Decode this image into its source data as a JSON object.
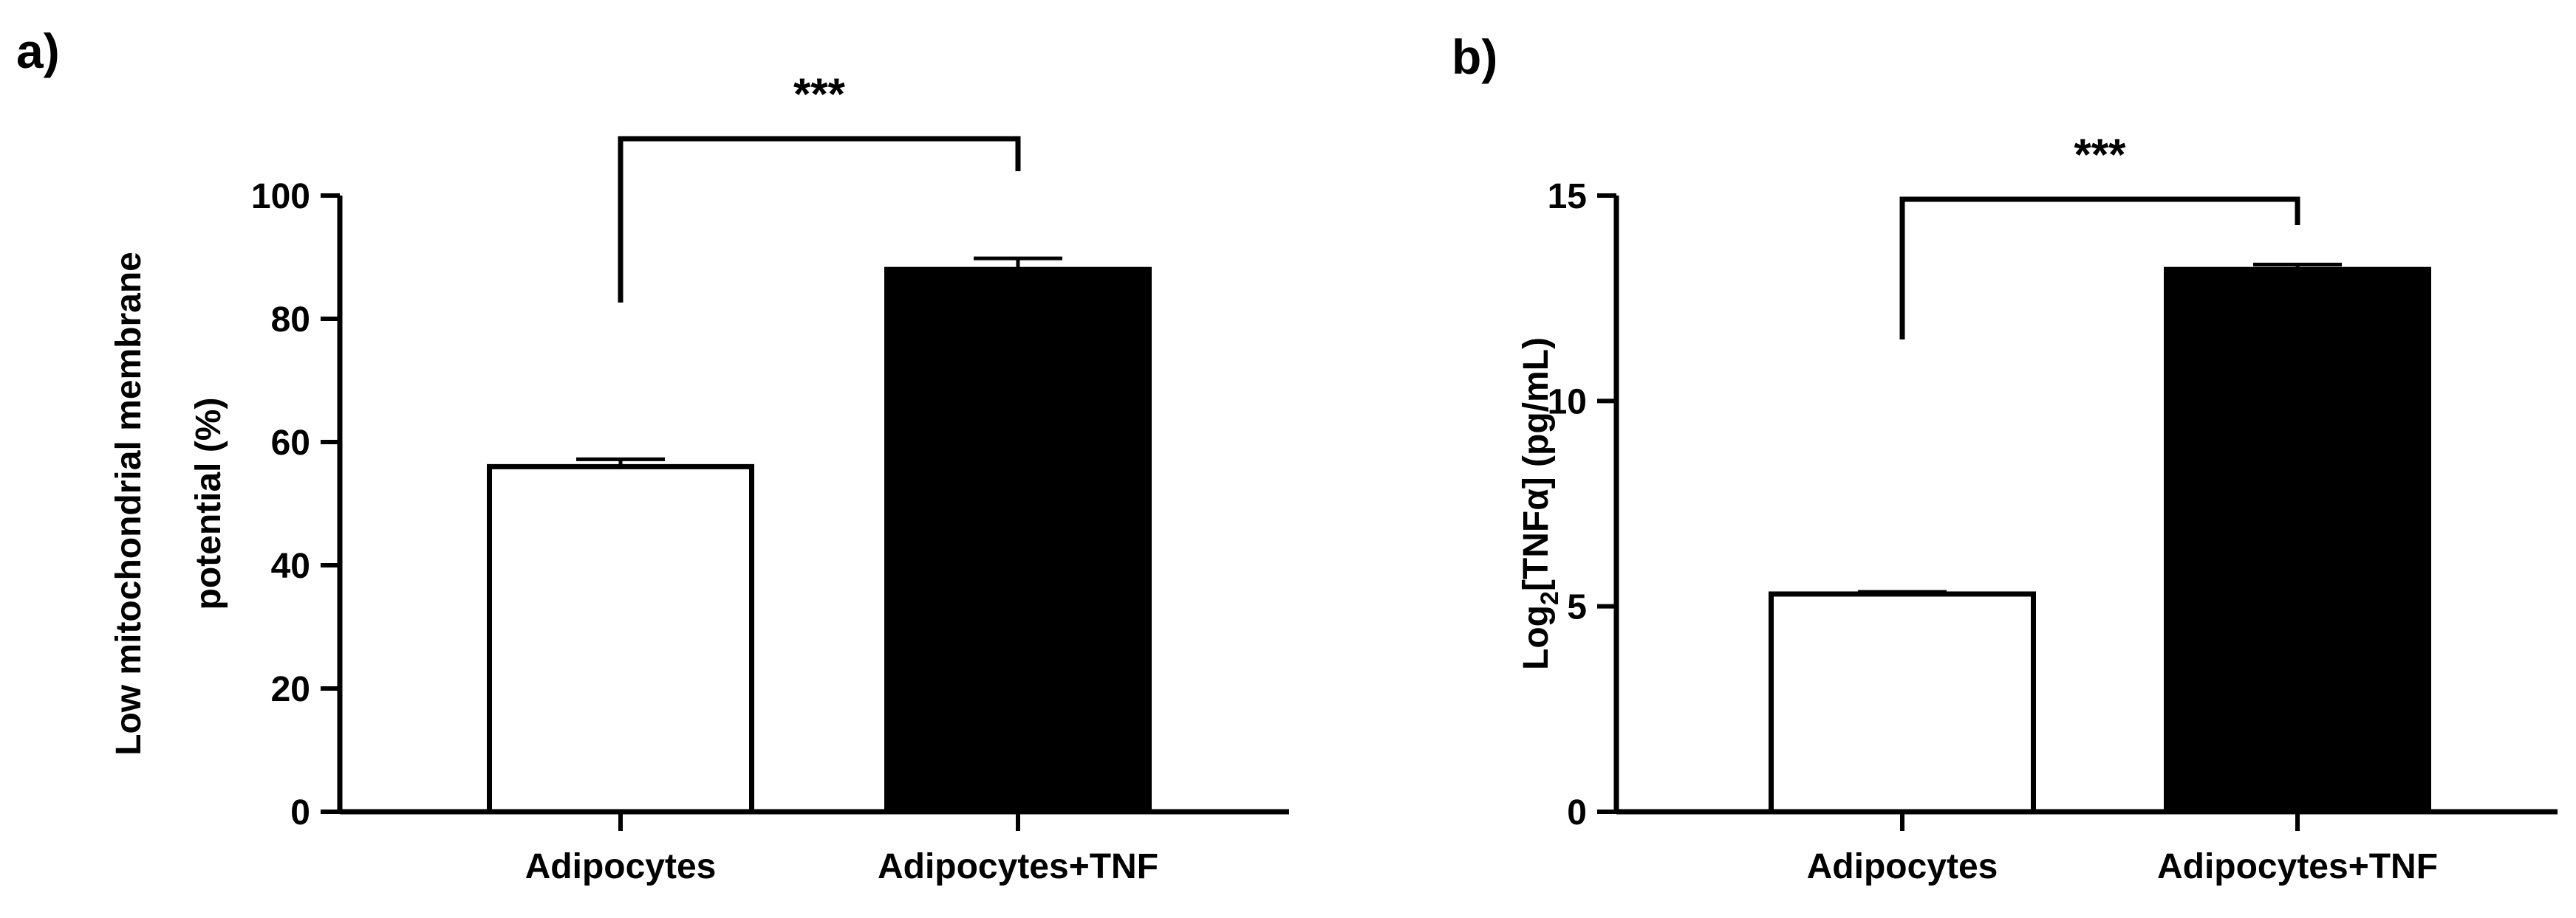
{
  "chart_data": [
    {
      "type": "bar",
      "panel_label": "a)",
      "categories": [
        "Adipocytes",
        "Adipocytes+TNF"
      ],
      "values": [
        56,
        88
      ],
      "errors": [
        1.2,
        1.8
      ],
      "bar_colors": [
        "#ffffff",
        "#000000"
      ],
      "ylabel_lines": [
        "Low mitochondrial membrane",
        "potential (%)"
      ],
      "ylim": [
        0,
        100
      ],
      "yticks": [
        0,
        20,
        40,
        60,
        80,
        100
      ],
      "significance": {
        "label": "***",
        "between": [
          0,
          1
        ]
      }
    },
    {
      "type": "bar",
      "panel_label": "b)",
      "categories": [
        "Adipocytes",
        "Adipocytes+TNF"
      ],
      "values": [
        5.3,
        13.2
      ],
      "errors": [
        0.05,
        0.12
      ],
      "bar_colors": [
        "#ffffff",
        "#000000"
      ],
      "ylabel_parts": {
        "pre": "Log",
        "sub": "2",
        "post": "[TNFα] (pg/mL)"
      },
      "ylim": [
        0,
        15
      ],
      "yticks": [
        0,
        5,
        10,
        15
      ],
      "significance": {
        "label": "***",
        "between": [
          0,
          1
        ]
      }
    }
  ]
}
